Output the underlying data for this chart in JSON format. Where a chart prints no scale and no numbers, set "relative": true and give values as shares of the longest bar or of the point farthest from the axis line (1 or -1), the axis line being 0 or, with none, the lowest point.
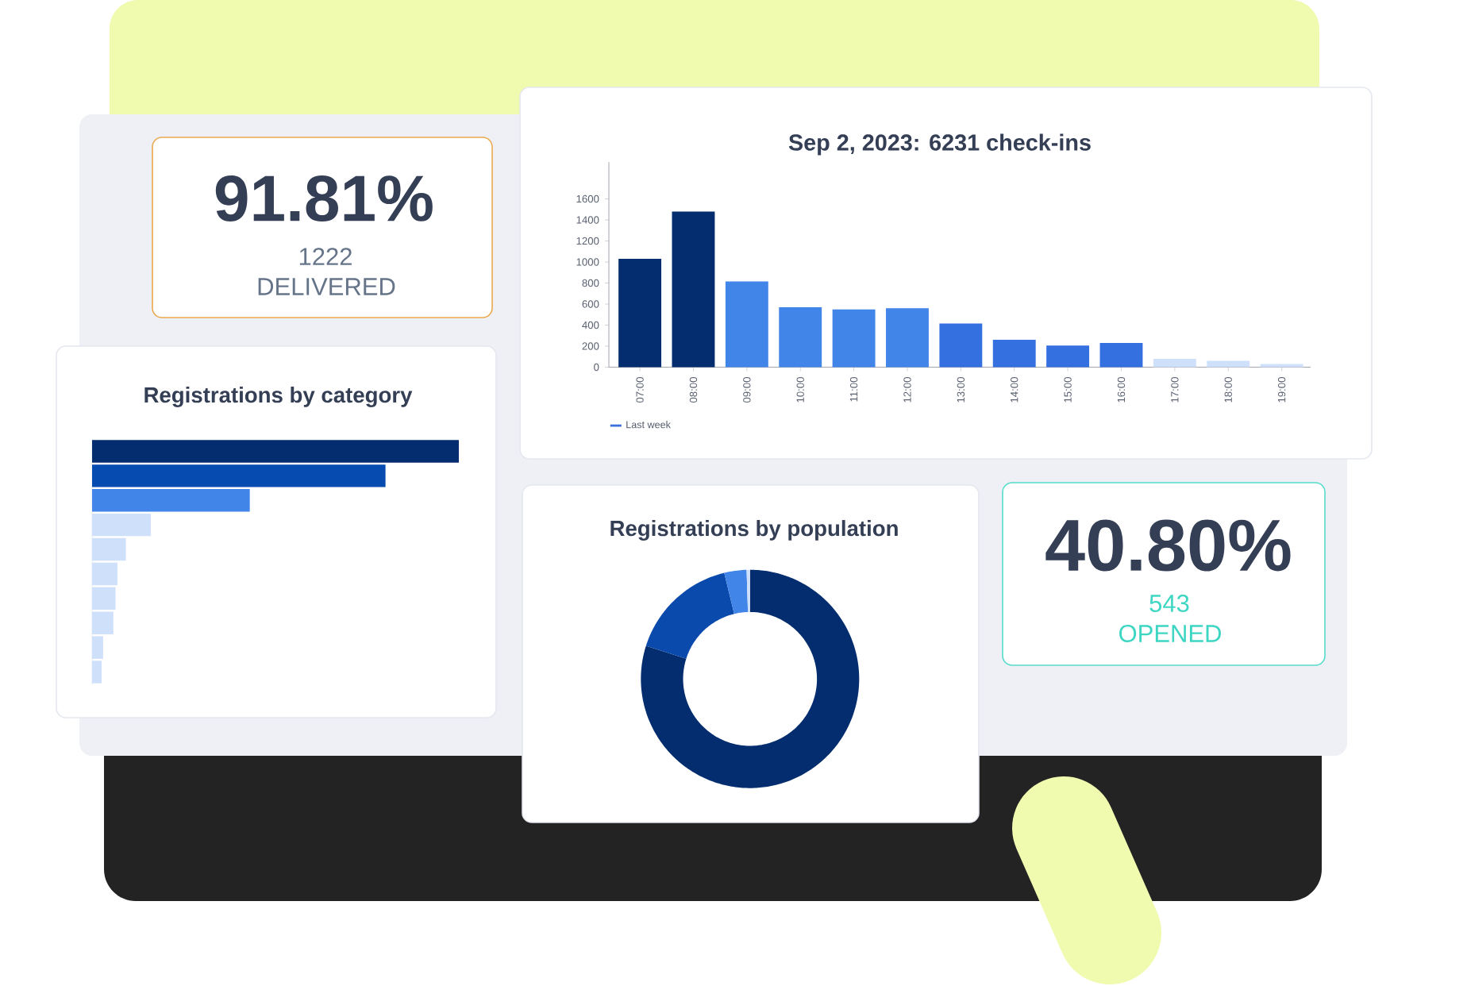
{
  "chart_data": [
    {
      "type": "other",
      "title": "91.81%",
      "annotations": [
        "1222",
        "DELIVERED"
      ]
    },
    {
      "type": "bar",
      "title": "Sep 2, 2023: 6231 check-ins",
      "categories": [
        "07:00",
        "08:00",
        "09:00",
        "10:00",
        "11:00",
        "12:00",
        "13:00",
        "14:00",
        "15:00",
        "16:00",
        "17:00",
        "18:00",
        "19:00"
      ],
      "series": [
        {
          "name": "Last week",
          "color": "#3a6fdc",
          "colors": [
            "#032d6e",
            "#032d6e",
            "#4285e9",
            "#4285e9",
            "#4285e9",
            "#4285e9",
            "#3470df",
            "#3470df",
            "#3470df",
            "#3470df",
            "#cfe0fb",
            "#cfe0fb",
            "#cfe0fb"
          ],
          "values": [
            1030,
            1480,
            815,
            570,
            550,
            560,
            415,
            260,
            205,
            230,
            80,
            60,
            30
          ]
        }
      ],
      "ylim": [
        0,
        1950
      ],
      "yticks": [
        0,
        200,
        400,
        600,
        800,
        1000,
        1200,
        1400,
        1600
      ],
      "legend": "bottom left"
    },
    {
      "type": "bar",
      "title": "Registrations by category",
      "orientation": "horizontal",
      "relative": true,
      "categories": [
        null,
        null,
        null,
        null,
        null,
        null,
        null,
        null,
        null,
        null
      ],
      "values": [
        1,
        0.8,
        0.43,
        0.16,
        0.092,
        0.069,
        0.064,
        0.058,
        0.03,
        0.026
      ],
      "colors": [
        "#032d6e",
        "#064bb0",
        "#4285e9",
        "#cfe0fb",
        "#cfe0fb",
        "#cfe0fb",
        "#cfe0fb",
        "#cfe0fb",
        "#cfe0fb",
        "#cfe0fb"
      ]
    },
    {
      "type": "donut",
      "title": "Registrations by population",
      "categories": [
        null,
        null,
        null,
        null
      ],
      "values": [
        79.9,
        16.3,
        3.3,
        0.5
      ],
      "colors": [
        "#032d6e",
        "#0a4aac",
        "#4285e9",
        "#cfe0fb"
      ]
    },
    {
      "type": "other",
      "title": "40.80%",
      "annotations": [
        "543",
        "OPENED"
      ]
    }
  ]
}
